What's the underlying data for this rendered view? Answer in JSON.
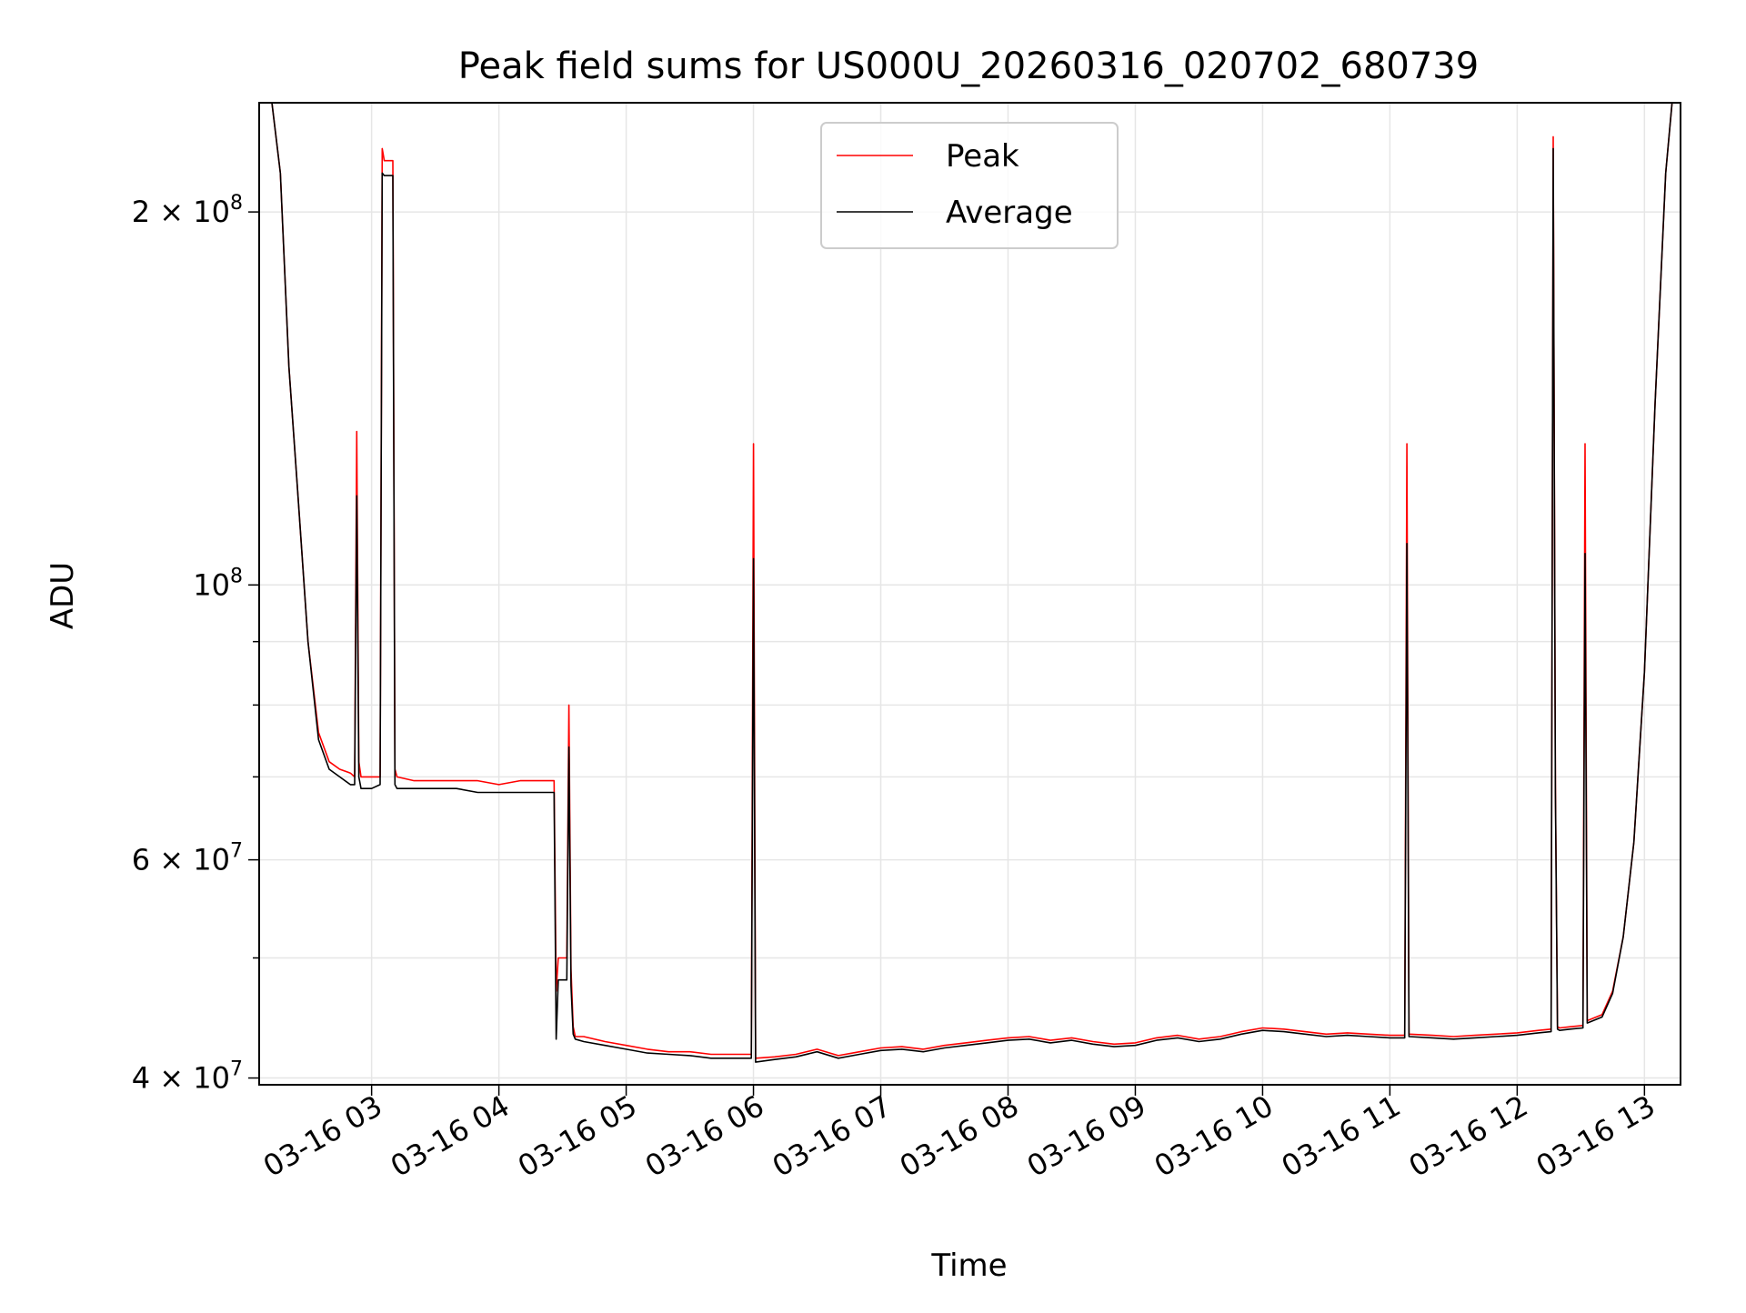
{
  "chart_data": {
    "type": "line",
    "title": "Peak field sums for US000U_20260316_020702_680739",
    "xlabel": "Time",
    "ylabel": "ADU",
    "y_scale": "log",
    "ylim": [
      39500000,
      245000000
    ],
    "xlim": [
      "2026-03-16 02:07",
      "2026-03-16 13:17"
    ],
    "grid": true,
    "legend_position": "top-center",
    "x_ticks": [
      {
        "t": "2026-03-16 03:00",
        "label": "03-16 03"
      },
      {
        "t": "2026-03-16 04:00",
        "label": "03-16 04"
      },
      {
        "t": "2026-03-16 05:00",
        "label": "03-16 05"
      },
      {
        "t": "2026-03-16 06:00",
        "label": "03-16 06"
      },
      {
        "t": "2026-03-16 07:00",
        "label": "03-16 07"
      },
      {
        "t": "2026-03-16 08:00",
        "label": "03-16 08"
      },
      {
        "t": "2026-03-16 09:00",
        "label": "03-16 09"
      },
      {
        "t": "2026-03-16 10:00",
        "label": "03-16 10"
      },
      {
        "t": "2026-03-16 11:00",
        "label": "03-16 11"
      },
      {
        "t": "2026-03-16 12:00",
        "label": "03-16 12"
      },
      {
        "t": "2026-03-16 13:00",
        "label": "03-16 13"
      }
    ],
    "y_ticks": [
      {
        "v": 40000000,
        "mant": "4 × 10",
        "exp": "7"
      },
      {
        "v": 60000000,
        "mant": "6 × 10",
        "exp": "7"
      },
      {
        "v": 100000000,
        "mant": "10",
        "exp": "8"
      },
      {
        "v": 200000000,
        "mant": "2 × 10",
        "exp": "8"
      }
    ],
    "y_minor_ticks": [
      50000000,
      70000000,
      80000000,
      90000000
    ],
    "series": [
      {
        "name": "Peak",
        "color": "#ff0000",
        "x": [
          "2026-03-16 02:07",
          "2026-03-16 02:13",
          "2026-03-16 02:17",
          "2026-03-16 02:21",
          "2026-03-16 02:25",
          "2026-03-16 02:30",
          "2026-03-16 02:35",
          "2026-03-16 02:40",
          "2026-03-16 02:45",
          "2026-03-16 02:50",
          "2026-03-16 02:52",
          "2026-03-16 02:53",
          "2026-03-16 02:54",
          "2026-03-16 02:55",
          "2026-03-16 03:00",
          "2026-03-16 03:04",
          "2026-03-16 03:05",
          "2026-03-16 03:06",
          "2026-03-16 03:10",
          "2026-03-16 03:11",
          "2026-03-16 03:12",
          "2026-03-16 03:20",
          "2026-03-16 03:30",
          "2026-03-16 03:40",
          "2026-03-16 03:50",
          "2026-03-16 04:00",
          "2026-03-16 04:10",
          "2026-03-16 04:20",
          "2026-03-16 04:26",
          "2026-03-16 04:27",
          "2026-03-16 04:28",
          "2026-03-16 04:32",
          "2026-03-16 04:33",
          "2026-03-16 04:34",
          "2026-03-16 04:35",
          "2026-03-16 04:36",
          "2026-03-16 04:40",
          "2026-03-16 04:50",
          "2026-03-16 05:00",
          "2026-03-16 05:10",
          "2026-03-16 05:20",
          "2026-03-16 05:30",
          "2026-03-16 05:40",
          "2026-03-16 05:50",
          "2026-03-16 05:59",
          "2026-03-16 06:00",
          "2026-03-16 06:01",
          "2026-03-16 06:10",
          "2026-03-16 06:20",
          "2026-03-16 06:30",
          "2026-03-16 06:40",
          "2026-03-16 06:50",
          "2026-03-16 07:00",
          "2026-03-16 07:10",
          "2026-03-16 07:20",
          "2026-03-16 07:30",
          "2026-03-16 07:40",
          "2026-03-16 07:50",
          "2026-03-16 08:00",
          "2026-03-16 08:10",
          "2026-03-16 08:20",
          "2026-03-16 08:30",
          "2026-03-16 08:40",
          "2026-03-16 08:50",
          "2026-03-16 09:00",
          "2026-03-16 09:10",
          "2026-03-16 09:20",
          "2026-03-16 09:30",
          "2026-03-16 09:40",
          "2026-03-16 09:50",
          "2026-03-16 10:00",
          "2026-03-16 10:10",
          "2026-03-16 10:20",
          "2026-03-16 10:30",
          "2026-03-16 10:40",
          "2026-03-16 10:50",
          "2026-03-16 11:00",
          "2026-03-16 11:07",
          "2026-03-16 11:08",
          "2026-03-16 11:09",
          "2026-03-16 11:20",
          "2026-03-16 11:30",
          "2026-03-16 11:40",
          "2026-03-16 11:50",
          "2026-03-16 12:00",
          "2026-03-16 12:10",
          "2026-03-16 12:16",
          "2026-03-16 12:17",
          "2026-03-16 12:18",
          "2026-03-16 12:19",
          "2026-03-16 12:20",
          "2026-03-16 12:25",
          "2026-03-16 12:31",
          "2026-03-16 12:32",
          "2026-03-16 12:33",
          "2026-03-16 12:40",
          "2026-03-16 12:45",
          "2026-03-16 12:50",
          "2026-03-16 12:55",
          "2026-03-16 13:00",
          "2026-03-16 13:05",
          "2026-03-16 13:10",
          "2026-03-16 13:13",
          "2026-03-16 13:17"
        ],
        "y": [
          245000000,
          245000000,
          215000000,
          150000000,
          120000000,
          90000000,
          76000000,
          72000000,
          71000000,
          70500000,
          70000000,
          133000000,
          72000000,
          70000000,
          70000000,
          70000000,
          225000000,
          220000000,
          220000000,
          71000000,
          70000000,
          69500000,
          69500000,
          69500000,
          69500000,
          69000000,
          69500000,
          69500000,
          69500000,
          47000000,
          50000000,
          50000000,
          80000000,
          49000000,
          44000000,
          43200000,
          43200000,
          42800000,
          42500000,
          42200000,
          42000000,
          42000000,
          41800000,
          41800000,
          41800000,
          130000000,
          41500000,
          41600000,
          41800000,
          42200000,
          41700000,
          42000000,
          42300000,
          42400000,
          42200000,
          42500000,
          42700000,
          42900000,
          43100000,
          43200000,
          42900000,
          43100000,
          42800000,
          42600000,
          42700000,
          43100000,
          43300000,
          43000000,
          43200000,
          43600000,
          43900000,
          43800000,
          43600000,
          43400000,
          43500000,
          43400000,
          43300000,
          43300000,
          130000000,
          43400000,
          43300000,
          43200000,
          43300000,
          43400000,
          43500000,
          43700000,
          43800000,
          230000000,
          69000000,
          44000000,
          43900000,
          44000000,
          44100000,
          130000000,
          44500000,
          45000000,
          47000000,
          52000000,
          62000000,
          85000000,
          140000000,
          215000000,
          245000000,
          245000000
        ]
      },
      {
        "name": "Average",
        "color": "#000000",
        "x": [
          "2026-03-16 02:07",
          "2026-03-16 02:13",
          "2026-03-16 02:17",
          "2026-03-16 02:21",
          "2026-03-16 02:25",
          "2026-03-16 02:30",
          "2026-03-16 02:35",
          "2026-03-16 02:40",
          "2026-03-16 02:45",
          "2026-03-16 02:50",
          "2026-03-16 02:52",
          "2026-03-16 02:53",
          "2026-03-16 02:54",
          "2026-03-16 02:55",
          "2026-03-16 03:00",
          "2026-03-16 03:04",
          "2026-03-16 03:05",
          "2026-03-16 03:06",
          "2026-03-16 03:10",
          "2026-03-16 03:11",
          "2026-03-16 03:12",
          "2026-03-16 03:20",
          "2026-03-16 03:30",
          "2026-03-16 03:40",
          "2026-03-16 03:50",
          "2026-03-16 04:00",
          "2026-03-16 04:10",
          "2026-03-16 04:20",
          "2026-03-16 04:26",
          "2026-03-16 04:27",
          "2026-03-16 04:28",
          "2026-03-16 04:32",
          "2026-03-16 04:33",
          "2026-03-16 04:34",
          "2026-03-16 04:35",
          "2026-03-16 04:36",
          "2026-03-16 04:40",
          "2026-03-16 04:50",
          "2026-03-16 05:00",
          "2026-03-16 05:10",
          "2026-03-16 05:20",
          "2026-03-16 05:30",
          "2026-03-16 05:40",
          "2026-03-16 05:50",
          "2026-03-16 05:59",
          "2026-03-16 06:00",
          "2026-03-16 06:01",
          "2026-03-16 06:10",
          "2026-03-16 06:20",
          "2026-03-16 06:30",
          "2026-03-16 06:40",
          "2026-03-16 06:50",
          "2026-03-16 07:00",
          "2026-03-16 07:10",
          "2026-03-16 07:20",
          "2026-03-16 07:30",
          "2026-03-16 07:40",
          "2026-03-16 07:50",
          "2026-03-16 08:00",
          "2026-03-16 08:10",
          "2026-03-16 08:20",
          "2026-03-16 08:30",
          "2026-03-16 08:40",
          "2026-03-16 08:50",
          "2026-03-16 09:00",
          "2026-03-16 09:10",
          "2026-03-16 09:20",
          "2026-03-16 09:30",
          "2026-03-16 09:40",
          "2026-03-16 09:50",
          "2026-03-16 10:00",
          "2026-03-16 10:10",
          "2026-03-16 10:20",
          "2026-03-16 10:30",
          "2026-03-16 10:40",
          "2026-03-16 10:50",
          "2026-03-16 11:00",
          "2026-03-16 11:07",
          "2026-03-16 11:08",
          "2026-03-16 11:09",
          "2026-03-16 11:20",
          "2026-03-16 11:30",
          "2026-03-16 11:40",
          "2026-03-16 11:50",
          "2026-03-16 12:00",
          "2026-03-16 12:10",
          "2026-03-16 12:16",
          "2026-03-16 12:17",
          "2026-03-16 12:18",
          "2026-03-16 12:19",
          "2026-03-16 12:20",
          "2026-03-16 12:25",
          "2026-03-16 12:31",
          "2026-03-16 12:32",
          "2026-03-16 12:33",
          "2026-03-16 12:40",
          "2026-03-16 12:45",
          "2026-03-16 12:50",
          "2026-03-16 12:55",
          "2026-03-16 13:00",
          "2026-03-16 13:05",
          "2026-03-16 13:10",
          "2026-03-16 13:13",
          "2026-03-16 13:17"
        ],
        "y": [
          245000000,
          245000000,
          215000000,
          150000000,
          120000000,
          90000000,
          75000000,
          71000000,
          70000000,
          69000000,
          69000000,
          118000000,
          70000000,
          68500000,
          68500000,
          69000000,
          215000000,
          214000000,
          214000000,
          69000000,
          68500000,
          68500000,
          68500000,
          68500000,
          68000000,
          68000000,
          68000000,
          68000000,
          68000000,
          43000000,
          48000000,
          48000000,
          74000000,
          47500000,
          43400000,
          43000000,
          42800000,
          42500000,
          42200000,
          41900000,
          41800000,
          41700000,
          41500000,
          41500000,
          41500000,
          105000000,
          41200000,
          41400000,
          41600000,
          42000000,
          41500000,
          41800000,
          42100000,
          42200000,
          42000000,
          42300000,
          42500000,
          42700000,
          42900000,
          43000000,
          42700000,
          42900000,
          42600000,
          42400000,
          42500000,
          42900000,
          43100000,
          42800000,
          43000000,
          43400000,
          43700000,
          43600000,
          43400000,
          43200000,
          43300000,
          43200000,
          43100000,
          43100000,
          108000000,
          43200000,
          43100000,
          43000000,
          43100000,
          43200000,
          43300000,
          43500000,
          43600000,
          225000000,
          68000000,
          43800000,
          43700000,
          43800000,
          43900000,
          106000000,
          44300000,
          44800000,
          46800000,
          52000000,
          62000000,
          85000000,
          140000000,
          215000000,
          245000000,
          245000000
        ]
      }
    ]
  }
}
